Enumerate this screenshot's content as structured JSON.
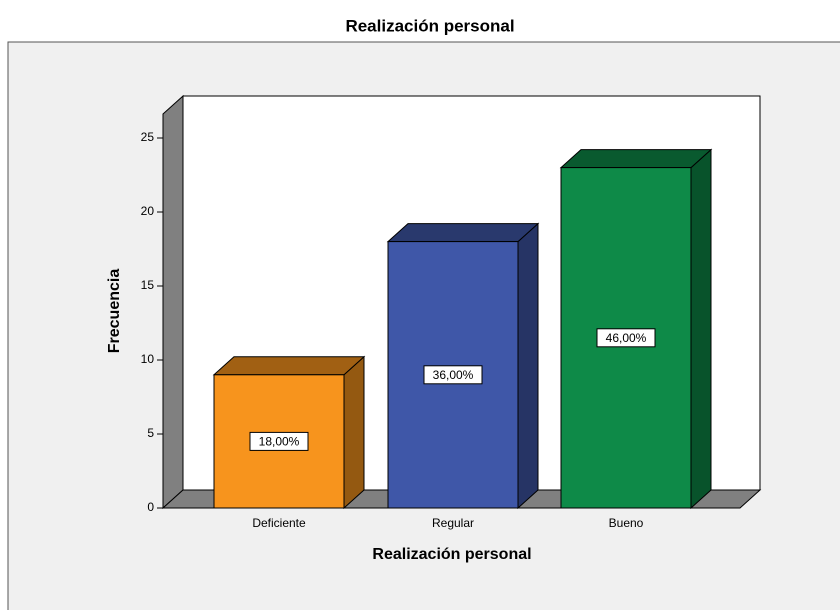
{
  "chart_data": {
    "type": "bar3d",
    "title": "Realización personal",
    "x_label": "Realización personal",
    "y_label": "Frecuencia",
    "categories": [
      "Deficiente",
      "Regular",
      "Bueno"
    ],
    "values": [
      9,
      18,
      23
    ],
    "data_labels": [
      "18,00%",
      "36,00%",
      "46,00%"
    ],
    "colors": [
      "#f7941d",
      "#3f57a8",
      "#0e8a48"
    ],
    "ylim": [
      0,
      25
    ],
    "yticks": [
      0,
      5,
      10,
      15,
      20,
      25
    ]
  }
}
